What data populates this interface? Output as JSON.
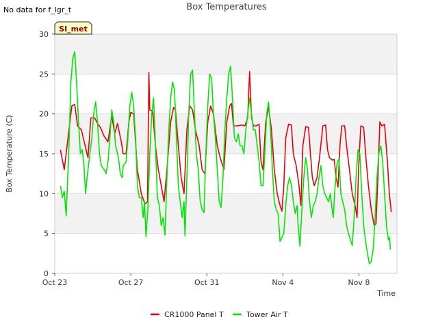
{
  "status_text": "No data for f_lgr_t",
  "badge": {
    "label": "SI_met"
  },
  "colors": {
    "panel": "#e8000b",
    "air": "#00e800",
    "band": "#f2f2f2",
    "badge_bg": "#ffffc8",
    "badge_text": "#8b0000"
  },
  "chart_data": {
    "type": "line",
    "title": "Box Temperatures",
    "xlabel": "Time",
    "ylabel": "Box Temperature (C)",
    "xlim": [
      0,
      18
    ],
    "ylim": [
      0,
      30
    ],
    "x_ticks": [
      {
        "value": 0,
        "label": "Oct 23"
      },
      {
        "value": 4,
        "label": "Oct 27"
      },
      {
        "value": 8,
        "label": "Oct 31"
      },
      {
        "value": 12,
        "label": "Nov 4"
      },
      {
        "value": 16,
        "label": "Nov 8"
      }
    ],
    "y_ticks": [
      0,
      5,
      10,
      15,
      20,
      25,
      30
    ],
    "legend_position": "bottom-center",
    "series": [
      {
        "name": "CR1000 Panel T",
        "color": "#e8000b",
        "points": [
          [
            0.3,
            15.5
          ],
          [
            0.5,
            13
          ],
          [
            0.7,
            17
          ],
          [
            0.9,
            21
          ],
          [
            1.05,
            21.2
          ],
          [
            1.2,
            18.5
          ],
          [
            1.4,
            18
          ],
          [
            1.6,
            16
          ],
          [
            1.75,
            14.5
          ],
          [
            1.9,
            19.5
          ],
          [
            2.1,
            19.5
          ],
          [
            2.25,
            18.8
          ],
          [
            2.4,
            18.3
          ],
          [
            2.6,
            17.2
          ],
          [
            2.8,
            16.5
          ],
          [
            3.0,
            19.8
          ],
          [
            3.15,
            17.5
          ],
          [
            3.3,
            18.8
          ],
          [
            3.5,
            16.5
          ],
          [
            3.6,
            15
          ],
          [
            3.75,
            15
          ],
          [
            3.9,
            19
          ],
          [
            4.0,
            20.2
          ],
          [
            4.15,
            20
          ],
          [
            4.35,
            13
          ],
          [
            4.55,
            10
          ],
          [
            4.75,
            8.7
          ],
          [
            4.88,
            9
          ],
          [
            4.95,
            25.2
          ],
          [
            5.0,
            20.5
          ],
          [
            5.15,
            20.3
          ],
          [
            5.3,
            16
          ],
          [
            5.45,
            13
          ],
          [
            5.6,
            11
          ],
          [
            5.75,
            9
          ],
          [
            5.9,
            13
          ],
          [
            6.1,
            19
          ],
          [
            6.25,
            20.8
          ],
          [
            6.35,
            20.5
          ],
          [
            6.5,
            16
          ],
          [
            6.65,
            12
          ],
          [
            6.8,
            10
          ],
          [
            6.95,
            18
          ],
          [
            7.1,
            21
          ],
          [
            7.25,
            20.5
          ],
          [
            7.4,
            18
          ],
          [
            7.6,
            16
          ],
          [
            7.75,
            13
          ],
          [
            7.9,
            12.5
          ],
          [
            8.05,
            19
          ],
          [
            8.2,
            21
          ],
          [
            8.35,
            20
          ],
          [
            8.55,
            16
          ],
          [
            8.7,
            14.5
          ],
          [
            8.9,
            13
          ],
          [
            9.05,
            19
          ],
          [
            9.2,
            21
          ],
          [
            9.3,
            21.3
          ],
          [
            9.4,
            18.5
          ],
          [
            9.6,
            18.5
          ],
          [
            9.8,
            18.6
          ],
          [
            10.0,
            18.5
          ],
          [
            10.15,
            19.5
          ],
          [
            10.25,
            25.3
          ],
          [
            10.35,
            19.5
          ],
          [
            10.45,
            18.5
          ],
          [
            10.6,
            18.5
          ],
          [
            10.75,
            18.7
          ],
          [
            10.85,
            14
          ],
          [
            10.95,
            13
          ],
          [
            11.1,
            19
          ],
          [
            11.25,
            20.8
          ],
          [
            11.4,
            18
          ],
          [
            11.55,
            13
          ],
          [
            11.7,
            10
          ],
          [
            11.85,
            8.5
          ],
          [
            11.95,
            7.8
          ],
          [
            12.05,
            11
          ],
          [
            12.15,
            17
          ],
          [
            12.3,
            18.7
          ],
          [
            12.45,
            18.6
          ],
          [
            12.55,
            15
          ],
          [
            12.7,
            13.5
          ],
          [
            12.85,
            11
          ],
          [
            12.95,
            8.5
          ],
          [
            13.05,
            16
          ],
          [
            13.2,
            18.4
          ],
          [
            13.35,
            18.3
          ],
          [
            13.45,
            15
          ],
          [
            13.55,
            12
          ],
          [
            13.65,
            11
          ],
          [
            13.8,
            12
          ],
          [
            13.95,
            15
          ],
          [
            14.1,
            18.5
          ],
          [
            14.25,
            18.6
          ],
          [
            14.35,
            15.5
          ],
          [
            14.45,
            14.5
          ],
          [
            14.6,
            14.2
          ],
          [
            14.7,
            14.3
          ],
          [
            14.8,
            12
          ],
          [
            14.9,
            10.8
          ],
          [
            15.0,
            16
          ],
          [
            15.1,
            18.5
          ],
          [
            15.25,
            18.5
          ],
          [
            15.35,
            16
          ],
          [
            15.5,
            13
          ],
          [
            15.65,
            10
          ],
          [
            15.8,
            8.5
          ],
          [
            15.9,
            7
          ],
          [
            16.0,
            14
          ],
          [
            16.1,
            18.5
          ],
          [
            16.25,
            18.3
          ],
          [
            16.35,
            15
          ],
          [
            16.5,
            11
          ],
          [
            16.65,
            8
          ],
          [
            16.8,
            6
          ],
          [
            16.9,
            6.2
          ],
          [
            17.0,
            12
          ],
          [
            17.1,
            19
          ],
          [
            17.2,
            18.5
          ],
          [
            17.35,
            18.7
          ],
          [
            17.5,
            14
          ],
          [
            17.6,
            10
          ],
          [
            17.7,
            7.7
          ]
        ]
      },
      {
        "name": "Tower Air T",
        "color": "#00e800",
        "points": [
          [
            0.3,
            11
          ],
          [
            0.4,
            9.5
          ],
          [
            0.5,
            10.3
          ],
          [
            0.6,
            7.2
          ],
          [
            0.75,
            16
          ],
          [
            0.85,
            24
          ],
          [
            0.95,
            27
          ],
          [
            1.05,
            27.8
          ],
          [
            1.15,
            24
          ],
          [
            1.25,
            19
          ],
          [
            1.35,
            15
          ],
          [
            1.45,
            15.5
          ],
          [
            1.55,
            13
          ],
          [
            1.62,
            10
          ],
          [
            1.7,
            12
          ],
          [
            1.85,
            15
          ],
          [
            1.95,
            17
          ],
          [
            2.05,
            20
          ],
          [
            2.15,
            21.5
          ],
          [
            2.25,
            19
          ],
          [
            2.35,
            15
          ],
          [
            2.45,
            13.5
          ],
          [
            2.6,
            13
          ],
          [
            2.7,
            12.5
          ],
          [
            2.8,
            14
          ],
          [
            2.9,
            17
          ],
          [
            3.0,
            20.5
          ],
          [
            3.1,
            19
          ],
          [
            3.2,
            16
          ],
          [
            3.35,
            14.5
          ],
          [
            3.45,
            12.5
          ],
          [
            3.55,
            12
          ],
          [
            3.6,
            13.5
          ],
          [
            3.75,
            14
          ],
          [
            3.85,
            17
          ],
          [
            3.95,
            21
          ],
          [
            4.05,
            22.7
          ],
          [
            4.15,
            21
          ],
          [
            4.25,
            17
          ],
          [
            4.35,
            11
          ],
          [
            4.45,
            9.5
          ],
          [
            4.55,
            9.5
          ],
          [
            4.65,
            7
          ],
          [
            4.72,
            9
          ],
          [
            4.8,
            4.6
          ],
          [
            4.9,
            8
          ],
          [
            5.0,
            15
          ],
          [
            5.1,
            20
          ],
          [
            5.2,
            22
          ],
          [
            5.3,
            16
          ],
          [
            5.4,
            9.5
          ],
          [
            5.5,
            8.5
          ],
          [
            5.6,
            6
          ],
          [
            5.7,
            7
          ],
          [
            5.8,
            4.8
          ],
          [
            5.9,
            12
          ],
          [
            6.0,
            18
          ],
          [
            6.1,
            22
          ],
          [
            6.2,
            24
          ],
          [
            6.3,
            23
          ],
          [
            6.4,
            17
          ],
          [
            6.5,
            11
          ],
          [
            6.6,
            9
          ],
          [
            6.7,
            7
          ],
          [
            6.8,
            9
          ],
          [
            6.85,
            4.7
          ],
          [
            6.95,
            12
          ],
          [
            7.05,
            20
          ],
          [
            7.15,
            25
          ],
          [
            7.25,
            25.5
          ],
          [
            7.35,
            20
          ],
          [
            7.45,
            15
          ],
          [
            7.55,
            13
          ],
          [
            7.65,
            9
          ],
          [
            7.75,
            8
          ],
          [
            7.85,
            7.6
          ],
          [
            7.95,
            15
          ],
          [
            8.05,
            21
          ],
          [
            8.15,
            25
          ],
          [
            8.25,
            24.5
          ],
          [
            8.35,
            20
          ],
          [
            8.45,
            17
          ],
          [
            8.55,
            13
          ],
          [
            8.65,
            9
          ],
          [
            8.75,
            8.3
          ],
          [
            8.85,
            12
          ],
          [
            8.95,
            18
          ],
          [
            9.05,
            22
          ],
          [
            9.15,
            25
          ],
          [
            9.25,
            26
          ],
          [
            9.35,
            22
          ],
          [
            9.45,
            17
          ],
          [
            9.55,
            16.5
          ],
          [
            9.65,
            17.5
          ],
          [
            9.75,
            16
          ],
          [
            9.85,
            16
          ],
          [
            9.95,
            15
          ],
          [
            10.05,
            18
          ],
          [
            10.15,
            20
          ],
          [
            10.25,
            22
          ],
          [
            10.35,
            20
          ],
          [
            10.45,
            18
          ],
          [
            10.55,
            18
          ],
          [
            10.65,
            16
          ],
          [
            10.75,
            14
          ],
          [
            10.85,
            11
          ],
          [
            10.95,
            11
          ],
          [
            11.05,
            15
          ],
          [
            11.15,
            20
          ],
          [
            11.25,
            21.5
          ],
          [
            11.35,
            18
          ],
          [
            11.45,
            13
          ],
          [
            11.55,
            9
          ],
          [
            11.65,
            8
          ],
          [
            11.75,
            7.5
          ],
          [
            11.85,
            4
          ],
          [
            11.95,
            4.5
          ],
          [
            12.05,
            5
          ],
          [
            12.15,
            8.5
          ],
          [
            12.25,
            11
          ],
          [
            12.35,
            12
          ],
          [
            12.45,
            11
          ],
          [
            12.55,
            9
          ],
          [
            12.65,
            7.5
          ],
          [
            12.75,
            8.5
          ],
          [
            12.8,
            6
          ],
          [
            12.9,
            3.4
          ],
          [
            13.0,
            8
          ],
          [
            13.1,
            12
          ],
          [
            13.2,
            14.5
          ],
          [
            13.3,
            13
          ],
          [
            13.4,
            9
          ],
          [
            13.5,
            7
          ],
          [
            13.6,
            8.5
          ],
          [
            13.7,
            9
          ],
          [
            13.8,
            10
          ],
          [
            13.9,
            12
          ],
          [
            14.0,
            13.5
          ],
          [
            14.1,
            11
          ],
          [
            14.2,
            10
          ],
          [
            14.3,
            9.5
          ],
          [
            14.4,
            9
          ],
          [
            14.5,
            10
          ],
          [
            14.55,
            8.7
          ],
          [
            14.65,
            7
          ],
          [
            14.75,
            11
          ],
          [
            14.85,
            13.8
          ],
          [
            14.95,
            14.4
          ],
          [
            15.05,
            10
          ],
          [
            15.15,
            9
          ],
          [
            15.25,
            8
          ],
          [
            15.35,
            6
          ],
          [
            15.45,
            5
          ],
          [
            15.55,
            4.2
          ],
          [
            15.65,
            3.5
          ],
          [
            15.75,
            7
          ],
          [
            15.85,
            12
          ],
          [
            15.95,
            15.5
          ],
          [
            16.05,
            15
          ],
          [
            16.15,
            10
          ],
          [
            16.25,
            6
          ],
          [
            16.35,
            4
          ],
          [
            16.45,
            2.5
          ],
          [
            16.55,
            1.2
          ],
          [
            16.65,
            1.5
          ],
          [
            16.75,
            3
          ],
          [
            16.85,
            7
          ],
          [
            16.95,
            12
          ],
          [
            17.05,
            15
          ],
          [
            17.15,
            16
          ],
          [
            17.25,
            14
          ],
          [
            17.35,
            10
          ],
          [
            17.45,
            6
          ],
          [
            17.55,
            4.2
          ],
          [
            17.62,
            4.5
          ],
          [
            17.65,
            3
          ]
        ]
      }
    ]
  }
}
